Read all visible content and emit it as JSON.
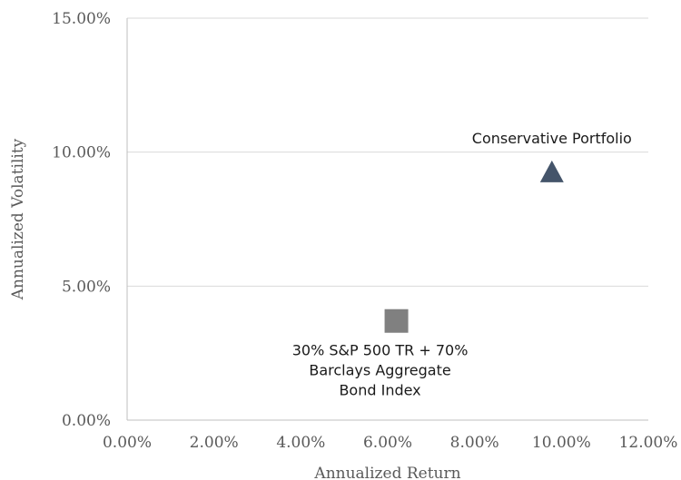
{
  "chart_data": {
    "type": "scatter",
    "title": "",
    "xlabel": "Annualized Return",
    "ylabel": "Annualized Volatility",
    "xlim": [
      0,
      12
    ],
    "ylim": [
      0,
      15
    ],
    "x_ticks": [
      "0.00%",
      "2.00%",
      "4.00%",
      "6.00%",
      "8.00%",
      "10.00%",
      "12.00%"
    ],
    "y_ticks": [
      "0.00%",
      "5.00%",
      "10.00%",
      "15.00%"
    ],
    "x_tick_values": [
      0,
      2,
      4,
      6,
      8,
      10,
      12
    ],
    "y_tick_values": [
      0,
      5,
      10,
      15
    ],
    "grid": "horizontal",
    "points": [
      {
        "label_lines": [
          "Conservative Portfolio"
        ],
        "x": 9.78,
        "y": 9.25,
        "marker": "triangle",
        "color": "#44546a",
        "label_position": "above"
      },
      {
        "label_lines": [
          "30% S&P 500 TR + 70%",
          "Barclays Aggregate",
          "Bond Index"
        ],
        "x": 6.2,
        "y": 3.7,
        "marker": "square",
        "color": "#808080",
        "label_position": "below"
      }
    ]
  }
}
